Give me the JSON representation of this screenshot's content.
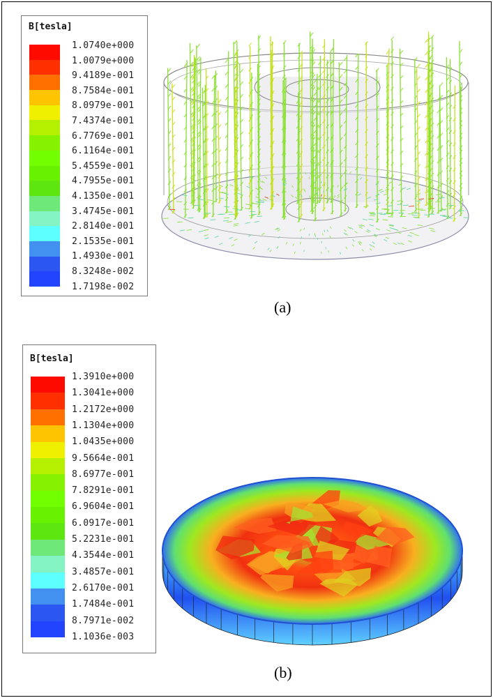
{
  "panel_a": {
    "caption": "(a)",
    "legend": {
      "title": "B[tesla]",
      "labels": [
        "1.0740e+000",
        "1.0079e+000",
        "9.4189e-001",
        "8.7584e-001",
        "8.0979e-001",
        "7.4374e-001",
        "6.7769e-001",
        "6.1164e-001",
        "5.4559e-001",
        "4.7955e-001",
        "4.1350e-001",
        "3.4745e-001",
        "2.8140e-001",
        "2.1535e-001",
        "1.4930e-001",
        "8.3248e-002",
        "1.7198e-002"
      ]
    },
    "view": "magnetic flux density vector arrows in cylindrical structure"
  },
  "panel_b": {
    "caption": "(b)",
    "legend": {
      "title": "B[tesla]",
      "labels": [
        "1.3910e+000",
        "1.3041e+000",
        "1.2172e+000",
        "1.1304e+000",
        "1.0435e+000",
        "9.5664e-001",
        "8.6977e-001",
        "7.8291e-001",
        "6.9604e-001",
        "6.0917e-001",
        "5.2231e-001",
        "4.3544e-001",
        "3.4857e-001",
        "2.6170e-001",
        "1.7484e-001",
        "8.7971e-002",
        "1.1036e-003"
      ]
    },
    "view": "magnetic flux density contour on disk"
  },
  "colors": {
    "bands": [
      "#ff0a00",
      "#ff3000",
      "#ff7000",
      "#ffc400",
      "#eef000",
      "#b4f000",
      "#86f200",
      "#72ff00",
      "#68f200",
      "#5ee610",
      "#6ee878",
      "#84f4c4",
      "#5effff",
      "#4290f0",
      "#2c56f2",
      "#2244ff"
    ],
    "arrow": "#88e030"
  }
}
